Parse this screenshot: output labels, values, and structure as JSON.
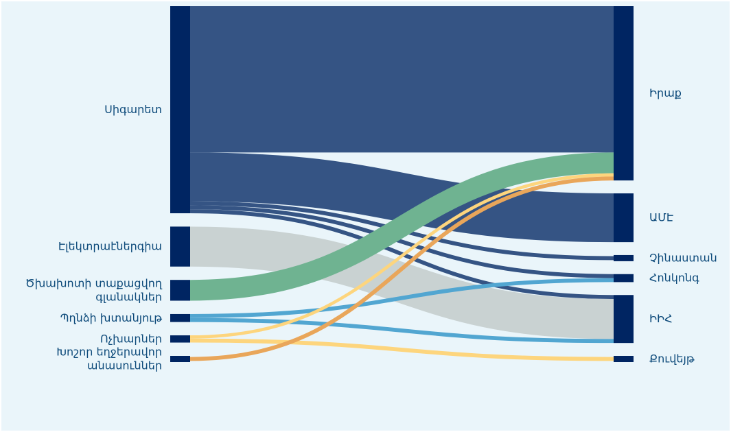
{
  "colors": {
    "background": "#eaf5fa",
    "node": "#002562",
    "label": "#0d4a7a"
  },
  "chart_data": {
    "type": "sankey",
    "title": "",
    "units": "",
    "sources": [
      {
        "name": "Սիգարետ",
        "lines": [
          "Սիգարետ"
        ]
      },
      {
        "name": "Էլեկտրաէներգիա",
        "lines": [
          "Էլեկտրաէներգիա"
        ]
      },
      {
        "name": "Ծխախոտի տաքացվող գլանակներ",
        "lines": [
          "Ծխախոտի տաքացվող",
          "գլանակներ"
        ]
      },
      {
        "name": "Պղնձի խտանյութ",
        "lines": [
          "Պղնձի խտանյութ"
        ]
      },
      {
        "name": "Ոչխարներ",
        "lines": [
          "Ոչխարներ"
        ]
      },
      {
        "name": "Խոշոր եղջերավոր անասուններ",
        "lines": [
          "Խոշոր եղջերավոր",
          "անասուններ"
        ]
      }
    ],
    "targets": [
      {
        "name": "Իրաք",
        "lines": [
          "Իրաք"
        ]
      },
      {
        "name": "ԱՄԷ",
        "lines": [
          "ԱՄԷ"
        ]
      },
      {
        "name": "Չինաստան",
        "lines": [
          "Չինաստան"
        ]
      },
      {
        "name": "Հոնկոնգ",
        "lines": [
          "Հոնկոնգ"
        ]
      },
      {
        "name": "ԻԻՀ",
        "lines": [
          "ԻԻՀ"
        ]
      },
      {
        "name": "Քուվեյթ",
        "lines": [
          "Քուվեյթ"
        ]
      }
    ],
    "links": [
      {
        "source": "Սիգարետ",
        "target": "Իրաք",
        "value": 183,
        "color": "#355484"
      },
      {
        "source": "Սիգարետ",
        "target": "ԱՄԷ",
        "value": 61,
        "color": "#355484"
      },
      {
        "source": "Սիգարետ",
        "target": "Չինաստան",
        "value": 5,
        "color": "#355484"
      },
      {
        "source": "Սիգարետ",
        "target": "Հոնկոնգ",
        "value": 5,
        "color": "#355484"
      },
      {
        "source": "Սիգարետ",
        "target": "ԻԻՀ",
        "value": 5,
        "color": "#355484"
      },
      {
        "source": "Էլեկտրաէներգիա",
        "target": "ԻԻՀ",
        "value": 50,
        "color": "#c9d2d2"
      },
      {
        "source": "Ծխախոտի տաքացվող գլանակներ",
        "target": "Իրաք",
        "value": 26,
        "color": "#6fb391"
      },
      {
        "source": "Պղնձի խտանյութ",
        "target": "Հոնկոնգ",
        "value": 5,
        "color": "#52a6d1"
      },
      {
        "source": "Պղնձի խտանյութ",
        "target": "ԻԻՀ",
        "value": 5,
        "color": "#52a6d1"
      },
      {
        "source": "Ոչխարներ",
        "target": "Իրաք",
        "value": 4,
        "color": "#fdd57d"
      },
      {
        "source": "Ոչխարներ",
        "target": "Քուվեյթ",
        "value": 5,
        "color": "#fdd57d"
      },
      {
        "source": "Խոշոր եղջերավոր անասուններ",
        "target": "Իրաք",
        "value": 5,
        "color": "#e9a65a"
      }
    ]
  }
}
